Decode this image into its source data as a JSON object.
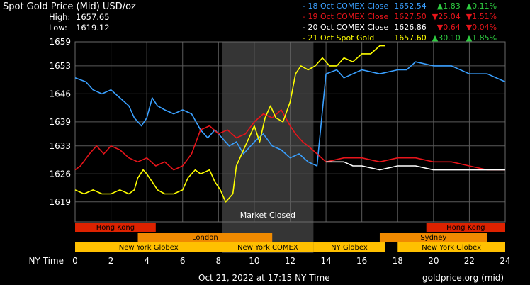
{
  "header": {
    "title": "Spot Gold Price (Mid) USD/oz",
    "high_label": "High:",
    "high_value": "1657.65",
    "low_label": "Low:",
    "low_value": "1619.12"
  },
  "legend": [
    {
      "name": "- 18 Oct COMEX Close",
      "price": "1652.54",
      "arrow": "▲",
      "change": "1.83",
      "pct_arrow": "▲",
      "pct": "0.11%",
      "color": "#3aa0ff",
      "chg_color": "#2ecc40"
    },
    {
      "name": "- 19 Oct COMEX Close",
      "price": "1627.50",
      "arrow": "▼",
      "change": "25.04",
      "pct_arrow": "▼",
      "pct": "1.51%",
      "color": "#e8151b",
      "chg_color": "#e8151b"
    },
    {
      "name": "- 20 Oct COMEX Close",
      "price": "1626.86",
      "arrow": "▼",
      "change": "0.64",
      "pct_arrow": "▼",
      "pct": "0.04%",
      "color": "#ffffff",
      "chg_color": "#e8151b"
    },
    {
      "name": "- 21 Oct Spot Gold",
      "price": "1657.60",
      "arrow": "▲",
      "change": "30.10",
      "pct_arrow": "▲",
      "pct": "1.85%",
      "color": "#ffff00",
      "chg_color": "#2ecc40"
    }
  ],
  "footer": {
    "x_axis_title": "NY Time",
    "timestamp": "Oct 21, 2022 at 17:15 NY Time",
    "source": "goldprice.org (mid)"
  },
  "market_closed_label": "Market Closed",
  "sessions": [
    {
      "label": "Hong Kong",
      "start": 0,
      "end": 4.5,
      "color": "#dd2200",
      "row": 0
    },
    {
      "label": "Hong Kong",
      "start": 19.6,
      "end": 24,
      "color": "#dd2200",
      "row": 0
    },
    {
      "label": "London",
      "start": 3.5,
      "end": 11,
      "color": "#f08a00",
      "row": 1
    },
    {
      "label": "Sydney",
      "start": 17,
      "end": 23,
      "color": "#f08a00",
      "row": 1
    },
    {
      "label": "New York Globex",
      "start": 0,
      "end": 8.2,
      "color": "#ffc000",
      "row": 2
    },
    {
      "label": "New York COMEX",
      "start": 8.2,
      "end": 13.3,
      "color": "#ffc000",
      "row": 2
    },
    {
      "label": "NY Globex",
      "start": 13.3,
      "end": 17.3,
      "color": "#ffc000",
      "row": 2
    },
    {
      "label": "New York Globex",
      "start": 18,
      "end": 24,
      "color": "#ffc000",
      "row": 2
    }
  ],
  "chart_data": {
    "type": "line",
    "x_range": [
      0,
      24
    ],
    "y_range": [
      1614,
      1659
    ],
    "x_ticks": [
      "0",
      "2",
      "4",
      "6",
      "8",
      "10",
      "12",
      "14",
      "16",
      "18",
      "20",
      "22",
      "24"
    ],
    "y_ticks": [
      "1619",
      "1626",
      "1633",
      "1639",
      "1646",
      "1653",
      "1659"
    ],
    "grid": true,
    "closed_region": [
      8.2,
      13.3
    ],
    "series": [
      {
        "name": "18 Oct COMEX Close",
        "color": "#3aa0ff",
        "points": [
          [
            0,
            1650
          ],
          [
            0.6,
            1649
          ],
          [
            1,
            1647
          ],
          [
            1.5,
            1646
          ],
          [
            2,
            1647
          ],
          [
            2.5,
            1645
          ],
          [
            3,
            1643
          ],
          [
            3.3,
            1640
          ],
          [
            3.7,
            1638
          ],
          [
            4,
            1640
          ],
          [
            4.3,
            1645
          ],
          [
            4.6,
            1643
          ],
          [
            5,
            1642
          ],
          [
            5.5,
            1641
          ],
          [
            6,
            1642
          ],
          [
            6.5,
            1641
          ],
          [
            7,
            1637
          ],
          [
            7.4,
            1635
          ],
          [
            7.8,
            1637
          ],
          [
            8.2,
            1635
          ],
          [
            8.6,
            1633
          ],
          [
            9,
            1634
          ],
          [
            9.4,
            1631
          ],
          [
            10,
            1634
          ],
          [
            10.5,
            1636
          ],
          [
            11,
            1633
          ],
          [
            11.5,
            1632
          ],
          [
            12,
            1630
          ],
          [
            12.5,
            1631
          ],
          [
            13,
            1629
          ],
          [
            13.5,
            1628
          ],
          [
            14,
            1651
          ],
          [
            14.6,
            1652
          ],
          [
            15,
            1650
          ],
          [
            16,
            1652
          ],
          [
            17,
            1651
          ],
          [
            18,
            1652
          ],
          [
            18.5,
            1652
          ],
          [
            19,
            1654
          ],
          [
            20,
            1653
          ],
          [
            21,
            1653
          ],
          [
            22,
            1651
          ],
          [
            23,
            1651
          ],
          [
            24,
            1649
          ]
        ]
      },
      {
        "name": "19 Oct COMEX Close",
        "color": "#e8151b",
        "points": [
          [
            0,
            1627
          ],
          [
            0.3,
            1628
          ],
          [
            0.8,
            1631
          ],
          [
            1.2,
            1633
          ],
          [
            1.6,
            1631
          ],
          [
            2,
            1633
          ],
          [
            2.5,
            1632
          ],
          [
            3,
            1630
          ],
          [
            3.5,
            1629
          ],
          [
            4,
            1630
          ],
          [
            4.5,
            1628
          ],
          [
            5,
            1629
          ],
          [
            5.5,
            1627
          ],
          [
            6,
            1628
          ],
          [
            6.5,
            1631
          ],
          [
            7,
            1637
          ],
          [
            7.5,
            1638
          ],
          [
            8,
            1636
          ],
          [
            8.5,
            1637
          ],
          [
            9,
            1635
          ],
          [
            9.5,
            1636
          ],
          [
            10,
            1639
          ],
          [
            10.5,
            1641
          ],
          [
            11,
            1640
          ],
          [
            11.5,
            1642
          ],
          [
            12,
            1638
          ],
          [
            12.3,
            1636
          ],
          [
            12.7,
            1634
          ],
          [
            13,
            1633
          ],
          [
            13.5,
            1631
          ],
          [
            14,
            1629
          ],
          [
            15,
            1630
          ],
          [
            16,
            1630
          ],
          [
            17,
            1629
          ],
          [
            18,
            1630
          ],
          [
            19,
            1630
          ],
          [
            20,
            1629
          ],
          [
            21,
            1629
          ],
          [
            22,
            1628
          ],
          [
            23,
            1627
          ],
          [
            24,
            1627
          ]
        ]
      },
      {
        "name": "20 Oct COMEX Close",
        "color": "#ffffff",
        "points": [
          [
            14,
            1629
          ],
          [
            15,
            1629
          ],
          [
            15.5,
            1628
          ],
          [
            16,
            1628
          ],
          [
            17,
            1627
          ],
          [
            18,
            1628
          ],
          [
            19,
            1628
          ],
          [
            20,
            1627
          ],
          [
            21,
            1627
          ],
          [
            22,
            1627
          ],
          [
            23,
            1627
          ],
          [
            24,
            1627
          ]
        ]
      },
      {
        "name": "21 Oct Spot Gold",
        "color": "#ffff00",
        "points": [
          [
            0,
            1622
          ],
          [
            0.5,
            1621
          ],
          [
            1,
            1622
          ],
          [
            1.5,
            1621
          ],
          [
            2,
            1621
          ],
          [
            2.5,
            1622
          ],
          [
            3,
            1621
          ],
          [
            3.3,
            1622
          ],
          [
            3.5,
            1625
          ],
          [
            3.8,
            1627
          ],
          [
            4,
            1626
          ],
          [
            4.3,
            1624
          ],
          [
            4.6,
            1622
          ],
          [
            5,
            1621
          ],
          [
            5.5,
            1621
          ],
          [
            6,
            1622
          ],
          [
            6.3,
            1625
          ],
          [
            6.7,
            1627
          ],
          [
            7,
            1626
          ],
          [
            7.5,
            1627
          ],
          [
            7.8,
            1624
          ],
          [
            8.1,
            1622
          ],
          [
            8.4,
            1619
          ],
          [
            8.8,
            1621
          ],
          [
            9,
            1628
          ],
          [
            9.4,
            1632
          ],
          [
            9.8,
            1636
          ],
          [
            10,
            1638
          ],
          [
            10.3,
            1634
          ],
          [
            10.6,
            1640
          ],
          [
            10.9,
            1643
          ],
          [
            11.2,
            1640
          ],
          [
            11.6,
            1639
          ],
          [
            12,
            1644
          ],
          [
            12.3,
            1651
          ],
          [
            12.6,
            1653
          ],
          [
            13,
            1652
          ],
          [
            13.4,
            1653
          ],
          [
            13.8,
            1655
          ],
          [
            14.2,
            1653
          ],
          [
            14.6,
            1653
          ],
          [
            15,
            1655
          ],
          [
            15.5,
            1654
          ],
          [
            16,
            1656
          ],
          [
            16.5,
            1656
          ],
          [
            17,
            1658
          ],
          [
            17.3,
            1658
          ]
        ]
      }
    ]
  }
}
